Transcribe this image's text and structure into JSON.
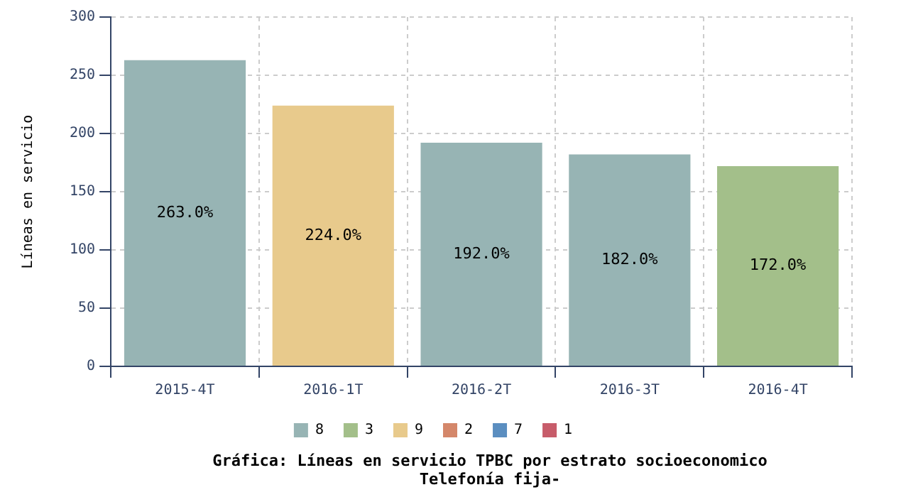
{
  "chart_data": {
    "type": "bar",
    "title": "Gráfica: Líneas en servicio TPBC por estrato socioeconomico",
    "subtitle": "Telefonía fija-",
    "ylabel": "Líneas en servicio",
    "categories": [
      "2015-4T",
      "2016-1T",
      "2016-2T",
      "2016-3T",
      "2016-4T"
    ],
    "series": [
      {
        "name": "8",
        "color": "#97b4b4",
        "values": [
          263,
          null,
          192,
          182,
          null
        ],
        "value_labels": [
          "263.0%",
          null,
          "192.0%",
          "182.0%",
          null
        ]
      },
      {
        "name": "3",
        "color": "#a3bf8a",
        "values": [
          null,
          null,
          null,
          null,
          172
        ],
        "value_labels": [
          null,
          null,
          null,
          null,
          "172.0%"
        ]
      },
      {
        "name": "9",
        "color": "#e8ca8c",
        "values": [
          null,
          224,
          null,
          null,
          null
        ],
        "value_labels": [
          null,
          "224.0%",
          null,
          null,
          null
        ]
      },
      {
        "name": "2",
        "color": "#d4876a",
        "values": [
          null,
          null,
          null,
          null,
          null
        ]
      },
      {
        "name": "7",
        "color": "#5b8ec0",
        "values": [
          null,
          null,
          null,
          null,
          null
        ]
      },
      {
        "name": "1",
        "color": "#c75c6a",
        "values": [
          null,
          null,
          null,
          null,
          null
        ]
      }
    ],
    "ylim": [
      0,
      300
    ],
    "yticks": [
      0,
      50,
      100,
      150,
      200,
      250,
      300
    ],
    "grid": true,
    "legend": "bottom"
  }
}
